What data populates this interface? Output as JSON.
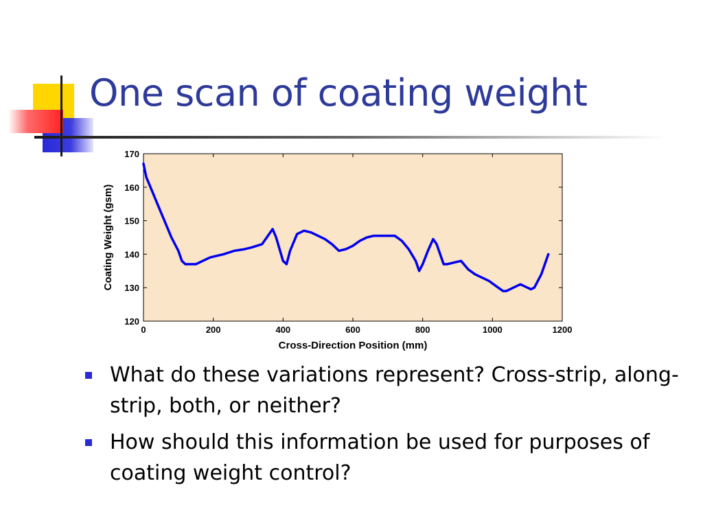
{
  "slide": {
    "title": "One scan of coating weight",
    "bullets": [
      "What do these variations represent? Cross-strip, along-strip, both, or neither?",
      "How should this information be used for purposes of coating weight control?"
    ]
  },
  "colors": {
    "title": "#2e3a9a",
    "plot_background": "#fbe5c8",
    "line": "#0000ee",
    "bullet": "#2a2ad8"
  },
  "chart_data": {
    "type": "line",
    "xlabel": "Cross-Direction Position (mm)",
    "ylabel": "Coating Weight (gsm)",
    "xlim": [
      0,
      1200
    ],
    "ylim": [
      120,
      170
    ],
    "xticks": [
      0,
      200,
      400,
      600,
      800,
      1000,
      1200
    ],
    "yticks": [
      120,
      130,
      140,
      150,
      160,
      170
    ],
    "grid": false,
    "series": [
      {
        "x": [
          0,
          8,
          20,
          40,
          60,
          80,
          100,
          110,
          120,
          130,
          150,
          170,
          190,
          210,
          230,
          260,
          290,
          310,
          340,
          360,
          370,
          380,
          400,
          410,
          420,
          440,
          460,
          480,
          500,
          520,
          540,
          560,
          580,
          600,
          620,
          640,
          660,
          680,
          700,
          720,
          740,
          760,
          780,
          790,
          800,
          815,
          830,
          840,
          860,
          870,
          890,
          910,
          930,
          950,
          970,
          990,
          1010,
          1030,
          1040,
          1060,
          1080,
          1100,
          1110,
          1120,
          1140,
          1160
        ],
        "y": [
          167,
          163,
          160,
          155,
          150,
          145,
          141,
          138,
          137,
          137,
          137,
          138,
          139,
          139.5,
          140,
          141,
          141.5,
          142,
          143,
          146,
          147.5,
          145,
          138,
          137,
          141,
          146,
          147,
          146.5,
          145.5,
          144.5,
          143,
          141,
          141.5,
          142.5,
          144,
          145,
          145.5,
          145.5,
          145.5,
          145.5,
          144,
          141.5,
          138,
          135,
          137,
          141,
          144.5,
          143,
          137,
          137,
          137.5,
          138,
          135.5,
          134,
          133,
          132,
          130.5,
          129,
          129,
          130,
          131,
          130,
          129.5,
          130,
          134,
          140
        ]
      }
    ]
  }
}
